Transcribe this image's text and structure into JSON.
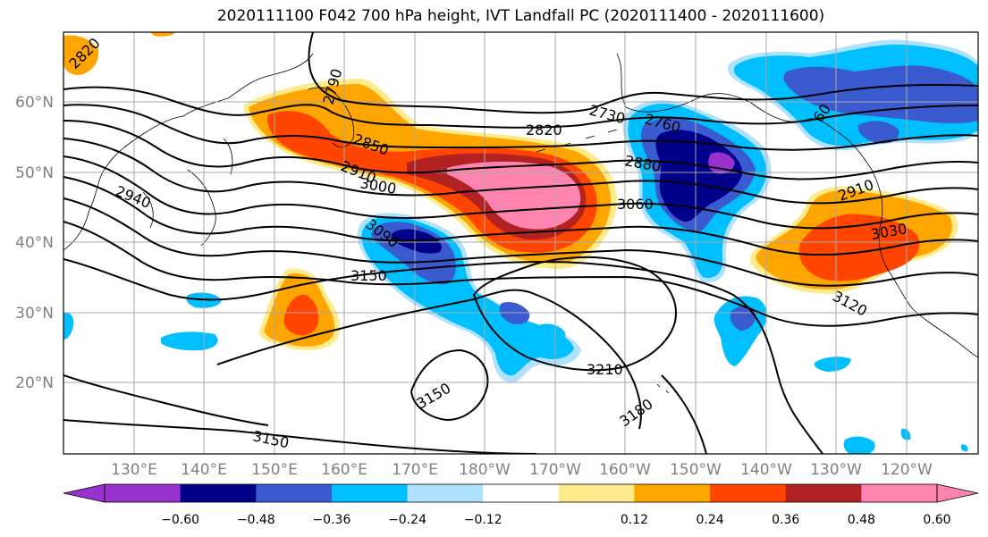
{
  "title": "2020111100 F042 700 hPa height, IVT Landfall PC (2020111400 - 2020111600)",
  "lat_labels": [
    "60°N",
    "50°N",
    "40°N",
    "30°N",
    "20°N"
  ],
  "lon_labels": [
    "130°E",
    "140°E",
    "150°E",
    "160°E",
    "170°E",
    "180°W",
    "170°W",
    "160°W",
    "150°W",
    "140°W",
    "130°W",
    "120°W"
  ],
  "contour_labels": [
    "2820",
    "2790",
    "2850",
    "2910",
    "3000",
    "2940",
    "3090",
    "3150",
    "2730",
    "2760",
    "2820",
    "2880",
    "3060",
    "60",
    "2910",
    "3030",
    "3120",
    "3210",
    "3150",
    "3180",
    "3150"
  ],
  "colorbar": {
    "tick_labels": [
      "−0.60",
      "−0.48",
      "−0.36",
      "−0.24",
      "−0.12",
      "0.12",
      "0.24",
      "0.36",
      "0.48",
      "0.60"
    ],
    "colors": [
      "#9932cc",
      "#00008b",
      "#3a5bd0",
      "#00bfff",
      "#b0e2ff",
      "#ffffff",
      "#ffeb8a",
      "#ffa500",
      "#ff4500",
      "#b22222",
      "#ff85b0"
    ]
  },
  "fill_colors": {
    "neg_060": "#9932cc",
    "neg_048": "#00008b",
    "neg_036": "#3a5bd0",
    "neg_024": "#00bfff",
    "neg_012": "#b0e2ff",
    "pos_012": "#ffeb8a",
    "pos_024": "#ffa500",
    "pos_036": "#ff4500",
    "pos_048": "#b22222",
    "pos_060": "#ff85b0"
  }
}
